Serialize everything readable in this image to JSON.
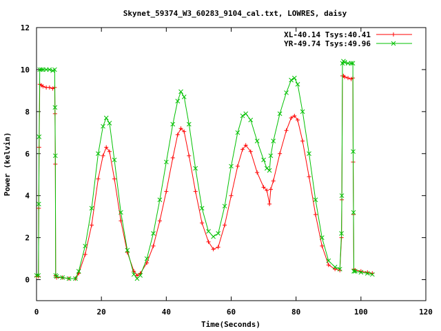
{
  "chart_data": {
    "type": "line",
    "title": "Skynet_59374_W3_60283_9104_cal.txt, LOWRES, daisy",
    "xlabel": "Time(Seconds)",
    "ylabel": "Power (kelvin)",
    "xlim": [
      0,
      120
    ],
    "ylim": [
      -1,
      12
    ],
    "xticks": [
      0,
      20,
      40,
      60,
      80,
      100,
      120
    ],
    "yticks": [
      0,
      2,
      4,
      6,
      8,
      10,
      12
    ],
    "xtick_labels": [
      "0",
      "20",
      "40",
      "60",
      "80",
      "100",
      "120"
    ],
    "ytick_labels": [
      "0",
      "2",
      "4",
      "6",
      "8",
      "10",
      "12"
    ],
    "grid": false,
    "legend_position": "top-right",
    "series": [
      {
        "name": "XL-40.14 Tsys:40.41",
        "color": "#ff0000",
        "marker": "plus",
        "x": [
          0,
          0.6,
          0.7,
          0.8,
          1.0,
          1.5,
          2,
          3,
          4,
          5,
          5.6,
          5.7,
          5.8,
          5.9,
          6.2,
          8,
          10,
          12,
          13,
          15,
          17,
          19,
          20.5,
          21.5,
          22.5,
          24,
          26,
          28,
          30,
          31,
          32,
          34,
          36,
          38,
          40,
          42,
          43.5,
          44.5,
          45.5,
          47,
          49,
          51,
          53,
          54.5,
          56,
          58,
          60,
          62,
          63.5,
          64.5,
          66,
          68,
          70,
          71,
          71.8,
          72.2,
          73,
          75,
          77,
          78.5,
          79.5,
          80.5,
          82,
          84,
          86,
          88,
          90,
          92,
          93.5,
          94,
          94.1,
          94.3,
          94.6,
          95,
          96,
          97,
          97.5,
          97.6,
          97.7,
          97.8,
          98.2,
          100,
          102,
          103.5
        ],
        "y": [
          0.15,
          0.15,
          3.4,
          6.3,
          9.3,
          9.25,
          9.2,
          9.15,
          9.15,
          9.1,
          9.15,
          7.9,
          5.5,
          0.2,
          0.1,
          0.1,
          0.05,
          0.05,
          0.3,
          1.2,
          2.6,
          4.8,
          5.9,
          6.3,
          6.1,
          4.8,
          2.8,
          1.3,
          0.4,
          0.2,
          0.3,
          0.8,
          1.6,
          2.8,
          4.2,
          5.8,
          6.9,
          7.2,
          7.05,
          5.9,
          4.2,
          2.7,
          1.8,
          1.45,
          1.55,
          2.6,
          4.0,
          5.4,
          6.2,
          6.4,
          6.1,
          5.1,
          4.4,
          4.25,
          3.6,
          4.3,
          4.7,
          6.0,
          7.1,
          7.7,
          7.8,
          7.6,
          6.6,
          4.9,
          3.1,
          1.6,
          0.7,
          0.5,
          0.45,
          2.0,
          3.8,
          9.7,
          9.7,
          9.65,
          9.6,
          9.55,
          9.6,
          5.6,
          3.1,
          0.5,
          0.45,
          0.4,
          0.35,
          0.3
        ]
      },
      {
        "name": "YR-49.74 Tsys:49.96",
        "color": "#00c000",
        "marker": "cross",
        "x": [
          0,
          0.6,
          0.7,
          0.8,
          1.0,
          1.5,
          2,
          3,
          4,
          5,
          5.6,
          5.7,
          5.8,
          5.9,
          6.2,
          8,
          10,
          12,
          13,
          15,
          17,
          19,
          20.5,
          21.5,
          22.5,
          24,
          26,
          28,
          30,
          31,
          32,
          34,
          36,
          38,
          40,
          42,
          43.5,
          44.5,
          45.5,
          47,
          49,
          51,
          53,
          54.5,
          56,
          58,
          60,
          62,
          63.5,
          64.5,
          66,
          68,
          70,
          71,
          71.8,
          72.2,
          73,
          75,
          77,
          78.5,
          79.5,
          80.5,
          82,
          84,
          86,
          88,
          90,
          92,
          93.5,
          94,
          94.1,
          94.3,
          94.6,
          95,
          96,
          97,
          97.5,
          97.6,
          97.7,
          97.8,
          98.2,
          100,
          102,
          103.5
        ],
        "y": [
          0.2,
          0.2,
          3.6,
          6.8,
          10.0,
          10.0,
          10.0,
          10.0,
          10.0,
          9.95,
          10.0,
          8.2,
          5.9,
          0.2,
          0.15,
          0.1,
          0.05,
          0.05,
          0.4,
          1.6,
          3.4,
          6.0,
          7.3,
          7.7,
          7.45,
          5.7,
          3.2,
          1.4,
          0.25,
          0.05,
          0.2,
          1.0,
          2.2,
          3.8,
          5.6,
          7.4,
          8.5,
          8.95,
          8.7,
          7.4,
          5.3,
          3.4,
          2.3,
          2.05,
          2.2,
          3.5,
          5.4,
          7.0,
          7.8,
          7.9,
          7.6,
          6.6,
          5.7,
          5.3,
          5.2,
          5.9,
          6.6,
          7.9,
          8.9,
          9.5,
          9.6,
          9.3,
          8.0,
          6.0,
          3.8,
          2.0,
          0.9,
          0.6,
          0.5,
          2.2,
          4.0,
          10.3,
          10.4,
          10.35,
          10.3,
          10.3,
          10.3,
          6.1,
          3.2,
          0.4,
          0.4,
          0.35,
          0.3,
          0.25
        ]
      }
    ]
  }
}
